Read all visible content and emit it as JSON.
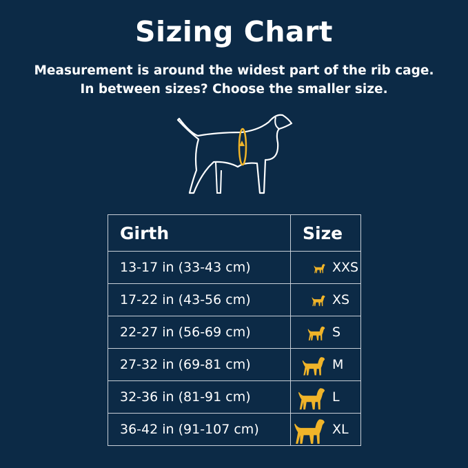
{
  "title": "Sizing Chart",
  "subtitle_line1": "Measurement is around the widest part of the rib cage.",
  "subtitle_line2": "In between sizes? Choose the smaller size.",
  "accent": "#f0b429",
  "illustration_icon": "dog-outline-with-girth-arrow-icon",
  "table": {
    "headers": [
      "Girth",
      "Size"
    ],
    "rows": [
      {
        "girth": "13-17 in (33-43 cm)",
        "size": "XXS",
        "icon": "chihuahua-icon"
      },
      {
        "girth": "17-22 in (43-56 cm)",
        "size": "XS",
        "icon": "pomeranian-icon"
      },
      {
        "girth": "22-27 in (56-69 cm)",
        "size": "S",
        "icon": "poodle-icon"
      },
      {
        "girth": "27-32 in (69-81 cm)",
        "size": "M",
        "icon": "spaniel-icon"
      },
      {
        "girth": "32-36 in (81-91 cm)",
        "size": "L",
        "icon": "retriever-icon"
      },
      {
        "girth": "36-42 in (91-107 cm)",
        "size": "XL",
        "icon": "great-dane-icon"
      }
    ]
  }
}
